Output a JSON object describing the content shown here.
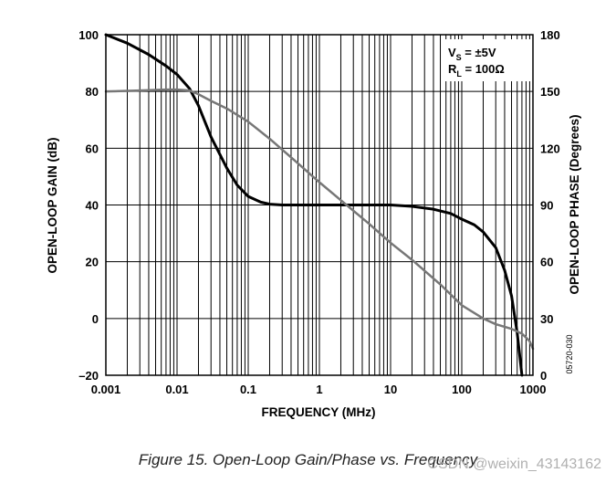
{
  "chart_data": {
    "type": "line",
    "title": "Figure 15. Open-Loop Gain/Phase vs. Frequency",
    "xlabel": "FREQUENCY (MHz)",
    "ylabel": "OPEN-LOOP GAIN (dB)",
    "y2label": "OPEN-LOOP PHASE (Degrees)",
    "xscale": "log",
    "xlim": [
      0.001,
      1000
    ],
    "ylim": [
      -20,
      100
    ],
    "y2lim": [
      0,
      180
    ],
    "x_tick_labels": [
      "0.001",
      "0.01",
      "0.1",
      "1",
      "10",
      "100",
      "1000"
    ],
    "x_tick_values": [
      0.001,
      0.01,
      0.1,
      1,
      10,
      100,
      1000
    ],
    "y_tick_labels": [
      "100",
      "80",
      "60",
      "40",
      "20",
      "0",
      "–20"
    ],
    "y_tick_values": [
      100,
      80,
      60,
      40,
      20,
      0,
      -20
    ],
    "y2_tick_labels": [
      "180",
      "150",
      "120",
      "90",
      "60",
      "30",
      "0"
    ],
    "y2_tick_values": [
      180,
      150,
      120,
      90,
      60,
      30,
      0
    ],
    "grid": true,
    "legend": {
      "placement": "top-right",
      "line1_main": "V",
      "line1_sub": "S",
      "line1_rest": " = ±5V",
      "line2_main": "R",
      "line2_sub": "L",
      "line2_rest": " = 100Ω"
    },
    "series": [
      {
        "name": "Open-Loop Gain",
        "axis": "left",
        "color": "#000000",
        "x": [
          0.001,
          0.002,
          0.004,
          0.007,
          0.01,
          0.015,
          0.02,
          0.03,
          0.05,
          0.07,
          0.1,
          0.15,
          0.2,
          0.3,
          0.5,
          1,
          2,
          5,
          10,
          20,
          40,
          70,
          100,
          150,
          200,
          300,
          400,
          500,
          600,
          700
        ],
        "y": [
          100,
          97,
          93,
          89,
          86,
          81,
          75,
          64,
          53,
          47,
          43,
          41,
          40.3,
          40,
          40,
          40,
          40,
          40,
          40,
          39.5,
          38.5,
          37,
          35,
          33,
          30.5,
          25,
          17,
          8,
          -5,
          -20
        ]
      },
      {
        "name": "Open-Loop Phase",
        "axis": "right",
        "color": "#777777",
        "x": [
          0.001,
          0.003,
          0.007,
          0.01,
          0.015,
          0.02,
          0.03,
          0.05,
          0.1,
          0.2,
          0.5,
          1,
          2,
          5,
          10,
          20,
          50,
          100,
          200,
          300,
          500,
          700,
          900,
          1000
        ],
        "y": [
          150,
          150.5,
          151,
          151,
          150.5,
          148.5,
          145,
          141,
          134,
          125,
          112,
          102,
          92.5,
          80,
          70,
          61,
          48,
          37,
          30,
          27,
          24.5,
          22,
          18,
          14
        ]
      }
    ]
  },
  "side_code": "05720-030",
  "caption": "Figure 15. Open-Loop Gain/Phase vs. Frequency",
  "watermark": "CSDN @weixin_43143162"
}
